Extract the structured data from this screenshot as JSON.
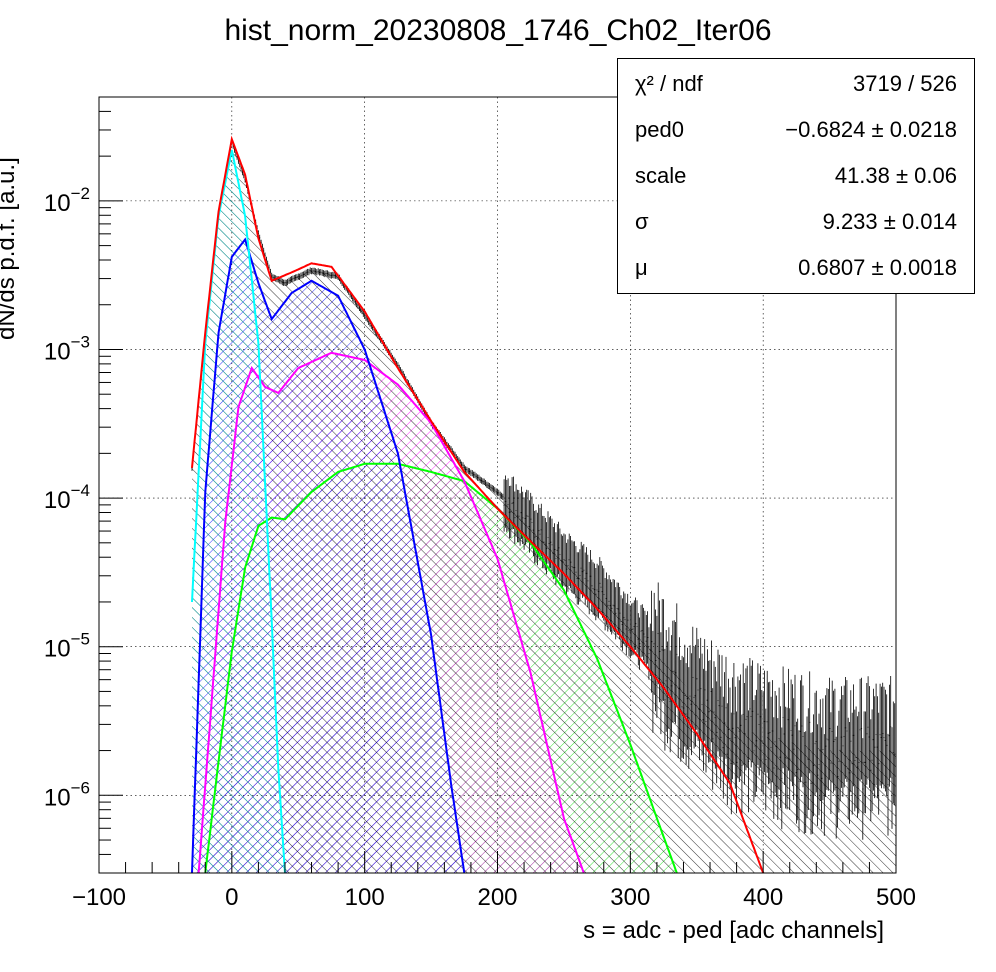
{
  "title": "hist_norm_20230808_1746_Ch02_Iter06",
  "chart_data": {
    "type": "line",
    "title": "hist_norm_20230808_1746_Ch02_Iter06",
    "xlabel": "s = adc - ped [adc channels]",
    "ylabel": "dN/ds p.d.f. [a.u.]",
    "xlim": [
      -100,
      500
    ],
    "ylim": [
      3e-07,
      0.05
    ],
    "yscale": "log",
    "grid": true,
    "x_ticks": [
      "−100",
      "0",
      "100",
      "200",
      "300",
      "400",
      "500"
    ],
    "y_ticks": [
      {
        "base": "10",
        "exp": "−2",
        "value": 0.01
      },
      {
        "base": "10",
        "exp": "−3",
        "value": 0.001
      },
      {
        "base": "10",
        "exp": "−4",
        "value": 0.0001
      },
      {
        "base": "10",
        "exp": "−5",
        "value": 1e-05
      },
      {
        "base": "10",
        "exp": "−6",
        "value": 1e-06
      }
    ],
    "series": [
      {
        "name": "",
        "role": "data-histogram",
        "color": "#000000",
        "x": [
          -30,
          -20,
          -10,
          0,
          10,
          20,
          30,
          40,
          60,
          80,
          100,
          125,
          150,
          175,
          200,
          225,
          250,
          275,
          300,
          325,
          350,
          375,
          400,
          450,
          500
        ],
        "y": [
          0.00016,
          0.0012,
          0.008,
          0.025,
          0.014,
          0.006,
          0.0031,
          0.0028,
          0.0034,
          0.0031,
          0.0017,
          0.00078,
          0.00032,
          0.00016,
          0.00011,
          6.5e-05,
          3.8e-05,
          2.5e-05,
          1.4e-05,
          8e-06,
          4.5e-06,
          3e-06,
          2.5e-06,
          2e-06,
          2e-06
        ]
      },
      {
        "name": "",
        "role": "total-fit",
        "color": "#ff0000",
        "x": [
          -30,
          -20,
          -10,
          0,
          10,
          20,
          30,
          45,
          60,
          75,
          100,
          125,
          150,
          175,
          200,
          225,
          250,
          275,
          300,
          325,
          350,
          375,
          400
        ],
        "y": [
          0.00016,
          0.0013,
          0.0085,
          0.026,
          0.015,
          0.0056,
          0.0029,
          0.0033,
          0.0038,
          0.0036,
          0.0018,
          0.00075,
          0.00033,
          0.00015,
          8.5e-05,
          5.1e-05,
          3.1e-05,
          1.8e-05,
          1e-05,
          5.3e-06,
          2.6e-06,
          1.2e-06,
          3e-07
        ]
      },
      {
        "name": "",
        "role": "pedestal",
        "color": "#00ffff",
        "x": [
          -30,
          -20,
          -10,
          0,
          10,
          20,
          30,
          35,
          40
        ],
        "y": [
          2e-05,
          0.0011,
          0.0079,
          0.022,
          0.0079,
          0.0011,
          1.5e-05,
          1.5e-06,
          3e-07
        ]
      },
      {
        "name": "",
        "role": "1-photoelectron",
        "color": "#0000ff",
        "x": [
          -30,
          -20,
          -10,
          0,
          10,
          20,
          30,
          45,
          60,
          80,
          100,
          125,
          150,
          165,
          175
        ],
        "y": [
          3e-07,
          0.00011,
          0.0013,
          0.0042,
          0.0055,
          0.0028,
          0.0016,
          0.0024,
          0.0029,
          0.0023,
          0.001,
          0.0002,
          1.2e-05,
          1.2e-06,
          3e-07
        ]
      },
      {
        "name": "",
        "role": "2-photoelectron",
        "color": "#ff00ff",
        "x": [
          -25,
          -15,
          -5,
          5,
          15,
          25,
          35,
          50,
          75,
          100,
          125,
          150,
          175,
          200,
          225,
          250,
          265
        ],
        "y": [
          3e-07,
          4.5e-06,
          6.8e-05,
          0.00041,
          0.00075,
          0.00056,
          0.00051,
          0.00075,
          0.00095,
          0.00085,
          0.00058,
          0.00032,
          0.00013,
          3.9e-05,
          6.6e-06,
          7e-07,
          3e-07
        ]
      },
      {
        "name": "",
        "role": "3-photoelectron",
        "color": "#00ff00",
        "x": [
          -20,
          -10,
          0,
          10,
          20,
          30,
          40,
          60,
          80,
          100,
          125,
          150,
          175,
          200,
          225,
          250,
          275,
          300,
          320,
          335
        ],
        "y": [
          3e-07,
          1.7e-06,
          9.3e-06,
          3.4e-05,
          6.5e-05,
          7.4e-05,
          7.2e-05,
          0.00011,
          0.00015,
          0.00017,
          0.00017,
          0.00015,
          0.00013,
          8.5e-05,
          5e-05,
          2.4e-05,
          8.3e-06,
          2.2e-06,
          7e-07,
          3e-07
        ]
      }
    ],
    "stats": [
      {
        "name": "χ² / ndf",
        "value": "3719 / 526"
      },
      {
        "name": "ped0",
        "value": "−0.6824 ± 0.0218"
      },
      {
        "name": "scale",
        "value": "41.38 ± 0.06"
      },
      {
        "name": "σ",
        "value": "9.233 ± 0.014"
      },
      {
        "name": "μ",
        "value": "0.6807 ± 0.0018"
      }
    ]
  }
}
